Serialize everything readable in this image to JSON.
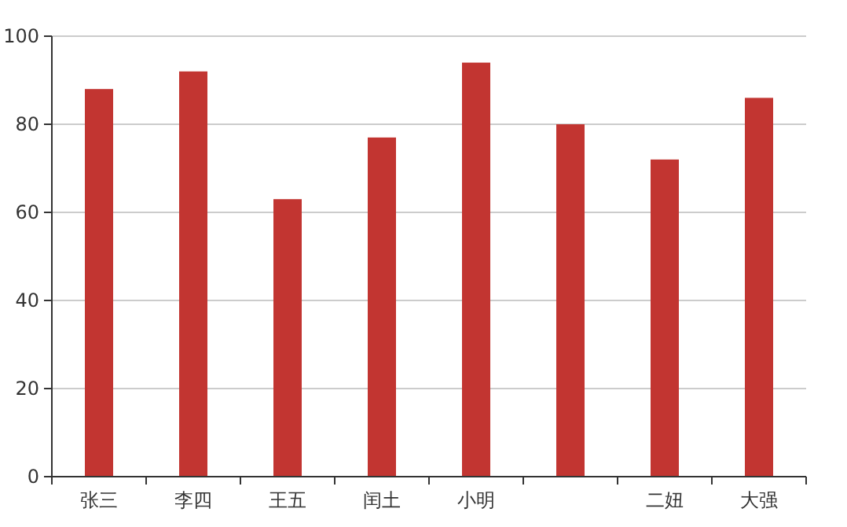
{
  "chart_data": {
    "type": "bar",
    "categories": [
      "张三",
      "李四",
      "王五",
      "闰土",
      "小明",
      null,
      "二妞",
      "大强"
    ],
    "values": [
      88,
      92,
      63,
      77,
      94,
      80,
      72,
      86
    ],
    "color": "#c23531",
    "ylim": [
      0,
      100
    ],
    "yticks": [
      0,
      20,
      40,
      60,
      80,
      100
    ],
    "grid": "y"
  }
}
